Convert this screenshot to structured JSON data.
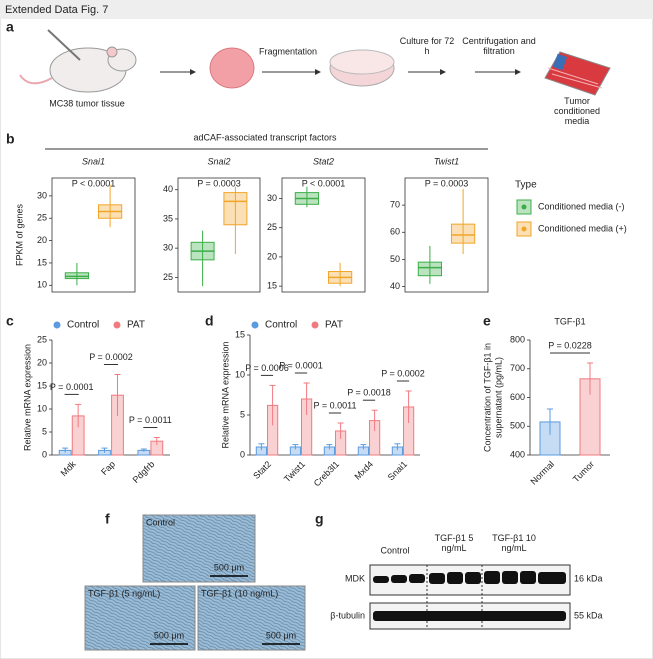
{
  "figure_title": "Extended Data Fig. 7",
  "panel_letters": [
    "a",
    "b",
    "c",
    "d",
    "e",
    "f",
    "g"
  ],
  "panel_a": {
    "steps": [
      "MC38 tumor tissue",
      "Fragmentation",
      "Culture for 72 h",
      "Centrifugation and filtration",
      "Tumor conditioned media"
    ]
  },
  "panel_b": {
    "header": "adCAF-associated transcript factors",
    "ylabel": "FPKM of genes",
    "legend_title": "Type",
    "legend": [
      {
        "name": "Conditioned media (-)",
        "color": "#3cae49"
      },
      {
        "name": "Conditioned media (+)",
        "color": "#f2a529"
      }
    ]
  },
  "chart_data": [
    {
      "type": "box",
      "title": "Snai1",
      "annotation": "P < 0.0001",
      "ylim": [
        8.5,
        34
      ],
      "yticks": [
        10,
        15,
        20,
        25,
        30
      ],
      "boxes": [
        {
          "color": "#3cae49",
          "min": 10,
          "q1": 11.5,
          "median": 12,
          "q3": 12.8,
          "max": 15
        },
        {
          "color": "#f2a529",
          "min": 23,
          "q1": 25,
          "median": 26.5,
          "q3": 28,
          "max": 32.5
        }
      ]
    },
    {
      "type": "box",
      "title": "Snai2",
      "annotation": "P = 0.0003",
      "ylim": [
        22.5,
        42
      ],
      "yticks": [
        25,
        30,
        35,
        40
      ],
      "boxes": [
        {
          "color": "#3cae49",
          "min": 23.5,
          "q1": 28,
          "median": 29.5,
          "q3": 31,
          "max": 33
        },
        {
          "color": "#f2a529",
          "min": 29,
          "q1": 34,
          "median": 38,
          "q3": 39.5,
          "max": 40.5
        }
      ]
    },
    {
      "type": "box",
      "title": "Stat2",
      "annotation": "P < 0.0001",
      "ylim": [
        14,
        33.5
      ],
      "yticks": [
        15,
        20,
        25,
        30
      ],
      "boxes": [
        {
          "color": "#3cae49",
          "min": 28.5,
          "q1": 29,
          "median": 30,
          "q3": 31,
          "max": 32
        },
        {
          "color": "#f2a529",
          "min": 15,
          "q1": 15.5,
          "median": 16.5,
          "q3": 17.5,
          "max": 19
        }
      ]
    },
    {
      "type": "box",
      "title": "Twist1",
      "annotation": "P = 0.0003",
      "ylim": [
        38,
        80
      ],
      "yticks": [
        40,
        50,
        60,
        70
      ],
      "boxes": [
        {
          "color": "#3cae49",
          "min": 41,
          "q1": 44,
          "median": 47,
          "q3": 49,
          "max": 55
        },
        {
          "color": "#f2a529",
          "min": 52,
          "q1": 56,
          "median": 59,
          "q3": 63,
          "max": 76
        }
      ]
    },
    {
      "type": "bar",
      "ylabel": "Relative mRNA expression",
      "ylim": [
        0,
        25
      ],
      "yticks": [
        0,
        5,
        10,
        15,
        20,
        25
      ],
      "categories": [
        "Mdk",
        "Fap",
        "Pdgfrb"
      ],
      "series": [
        {
          "name": "Control",
          "color": "#5b9be0",
          "values": [
            1,
            1,
            1
          ],
          "errors": [
            0.5,
            0.5,
            0.3
          ]
        },
        {
          "name": "PAT",
          "color": "#f07a7f",
          "values": [
            8.5,
            13,
            3
          ],
          "errors": [
            2.5,
            4.5,
            0.8
          ]
        }
      ],
      "annotations": [
        "P = 0.0001",
        "P = 0.0002",
        "P = 0.0011"
      ]
    },
    {
      "type": "bar",
      "ylabel": "Relative mRNA expression",
      "ylim": [
        0,
        15
      ],
      "yticks": [
        0,
        5,
        10,
        15
      ],
      "categories": [
        "Stat2",
        "Twist1",
        "Creb3l1",
        "Mxd4",
        "Snai1"
      ],
      "series": [
        {
          "name": "Control",
          "color": "#5b9be0",
          "values": [
            1,
            1,
            1,
            1,
            1
          ],
          "errors": [
            0.4,
            0.3,
            0.3,
            0.3,
            0.4
          ]
        },
        {
          "name": "PAT",
          "color": "#f07a7f",
          "values": [
            6.2,
            7,
            3,
            4.3,
            6
          ],
          "errors": [
            2.5,
            2,
            1,
            1.3,
            2
          ]
        }
      ],
      "annotations": [
        "P = 0.0006",
        "P = 0.0001",
        "P = 0.0011",
        "P = 0.0018",
        "P = 0.0002"
      ]
    },
    {
      "type": "single-bar",
      "title": "TGF-β1",
      "ylabel": "Concentration of TGF-β1 in supernatant (pg/mL)",
      "ylim": [
        400,
        800
      ],
      "yticks": [
        400,
        500,
        600,
        700,
        800
      ],
      "categories": [
        "Normal",
        "Tumor"
      ],
      "colors": [
        "#5b9be0",
        "#f07a7f"
      ],
      "values": [
        515,
        665
      ],
      "errors": [
        45,
        55
      ],
      "annotation": "P = 0.0228"
    }
  ],
  "panel_f": {
    "images": [
      "Control",
      "TGF-β1 (5 ng/mL)",
      "TGF-β1 (10 ng/mL)"
    ],
    "scale_bar": "500 μm"
  },
  "panel_g": {
    "lanes": [
      "Control",
      "TGF-β1 5 ng/mL",
      "TGF-β1 10 ng/mL"
    ],
    "blots": [
      {
        "name": "MDK",
        "size": "16 kDa"
      },
      {
        "name": "β-tubulin",
        "size": "55 kDa"
      }
    ]
  }
}
